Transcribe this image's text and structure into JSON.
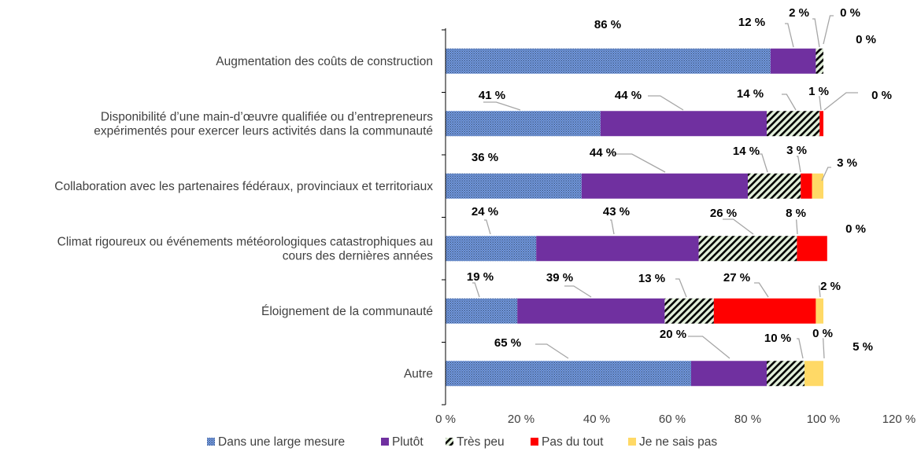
{
  "chart_data": {
    "type": "bar",
    "orientation": "horizontal",
    "stacked": true,
    "categories": [
      [
        "Augmentation des coûts de construction"
      ],
      [
        "Disponibilité d’une main-d’œuvre qualifiée ou d’entrepreneurs",
        "expérimentés pour exercer leurs activités dans la communauté"
      ],
      [
        "Collaboration avec les partenaires fédéraux, provinciaux et territoriaux"
      ],
      [
        "Climat rigoureux ou événements météorologiques catastrophiques au",
        "cours des dernières années"
      ],
      [
        "Éloignement de la communauté"
      ],
      [
        "Autre"
      ]
    ],
    "series": [
      {
        "name": "Dans une large mesure",
        "color": "#4472C4",
        "pattern": "dots",
        "values": [
          86,
          41,
          36,
          24,
          19,
          65
        ],
        "labels": [
          "86 %",
          "41 %",
          "36 %",
          "24 %",
          "19 %",
          "65 %"
        ]
      },
      {
        "name": "Plutôt",
        "color": "#7030A0",
        "pattern": "solid",
        "values": [
          12,
          44,
          44,
          43,
          39,
          20
        ],
        "labels": [
          "12 %",
          "44 %",
          "44 %",
          "43 %",
          "39 %",
          "20 %"
        ]
      },
      {
        "name": "Très peu",
        "color": "#000000",
        "pattern": "diagonal-stripes",
        "values": [
          2,
          14,
          14,
          26,
          13,
          10
        ],
        "labels": [
          "2 %",
          "14 %",
          "14 %",
          "26 %",
          "13 %",
          "10 %"
        ]
      },
      {
        "name": "Pas du tout",
        "color": "#FF0000",
        "pattern": "solid",
        "values": [
          0,
          1,
          3,
          8,
          27,
          0
        ],
        "labels": [
          "0 %",
          "1 %",
          "3 %",
          "8 %",
          "27 %",
          "0 %"
        ]
      },
      {
        "name": "Je ne sais pas",
        "color": "#FFD966",
        "pattern": "solid",
        "values": [
          0,
          0,
          3,
          0,
          2,
          5
        ],
        "labels": [
          "0 %",
          "0 %",
          "3 %",
          "0 %",
          "2 %",
          "5 %"
        ]
      }
    ],
    "x_ticks": [
      "0 %",
      "20 %",
      "40 %",
      "60 %",
      "80 %",
      "100 %",
      "120 %"
    ],
    "xlim": [
      0,
      120
    ],
    "grid": false,
    "legend_position": "bottom",
    "title": "",
    "xlabel": "",
    "ylabel": ""
  }
}
